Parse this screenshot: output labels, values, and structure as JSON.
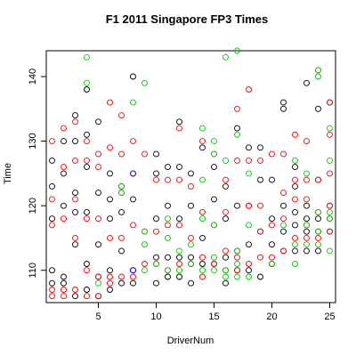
{
  "chart_data": {
    "type": "scatter",
    "title": "F1 2011 Singapore FP3 Times",
    "xlabel": "DriverNum",
    "ylabel": "Time",
    "xlim": [
      0.5,
      25.5
    ],
    "ylim": [
      105,
      144
    ],
    "xticks": [
      "5",
      "10",
      "15",
      "20",
      "25"
    ],
    "yticks": [
      "110",
      "120",
      "130",
      "140"
    ],
    "grid": false,
    "legend": "none",
    "series": [
      {
        "color": "#000000",
        "points": [
          [
            1,
            110
          ],
          [
            1,
            118
          ],
          [
            1,
            123
          ],
          [
            1,
            127
          ],
          [
            1,
            108
          ],
          [
            2,
            109
          ],
          [
            2,
            120
          ],
          [
            2,
            125
          ],
          [
            2,
            130
          ],
          [
            2,
            108
          ],
          [
            3,
            106
          ],
          [
            3,
            114
          ],
          [
            3,
            119
          ],
          [
            3,
            122
          ],
          [
            3,
            130
          ],
          [
            3,
            134
          ],
          [
            4,
            107
          ],
          [
            4,
            111
          ],
          [
            4,
            119
          ],
          [
            4,
            126
          ],
          [
            4,
            131
          ],
          [
            4,
            138
          ],
          [
            5,
            106
          ],
          [
            5,
            109
          ],
          [
            5,
            114
          ],
          [
            5,
            122
          ],
          [
            5,
            133
          ],
          [
            6,
            107
          ],
          [
            6,
            110
          ],
          [
            6,
            118
          ],
          [
            6,
            121
          ],
          [
            6,
            125
          ],
          [
            7,
            108
          ],
          [
            7,
            113
          ],
          [
            7,
            119
          ],
          [
            7,
            123
          ],
          [
            8,
            108
          ],
          [
            8,
            110
          ],
          [
            8,
            121
          ],
          [
            8,
            140
          ],
          [
            10,
            108
          ],
          [
            10,
            112
          ],
          [
            10,
            118
          ],
          [
            10,
            125
          ],
          [
            10,
            128
          ],
          [
            11,
            109
          ],
          [
            11,
            112
          ],
          [
            11,
            120
          ],
          [
            11,
            126
          ],
          [
            12,
            109
          ],
          [
            12,
            112
          ],
          [
            12,
            118
          ],
          [
            12,
            126
          ],
          [
            12,
            133
          ],
          [
            13,
            108
          ],
          [
            13,
            112
          ],
          [
            13,
            120
          ],
          [
            13,
            125
          ],
          [
            14,
            111
          ],
          [
            14,
            115
          ],
          [
            14,
            129
          ],
          [
            15,
            111
          ],
          [
            15,
            121
          ],
          [
            15,
            126
          ],
          [
            16,
            108
          ],
          [
            16,
            112
          ],
          [
            16,
            118
          ],
          [
            16,
            123
          ],
          [
            17,
            110
          ],
          [
            17,
            113
          ],
          [
            17,
            120
          ],
          [
            17,
            132
          ],
          [
            18,
            110
          ],
          [
            18,
            114
          ],
          [
            18,
            120
          ],
          [
            18,
            129
          ],
          [
            19,
            109
          ],
          [
            19,
            116
          ],
          [
            19,
            124
          ],
          [
            19,
            129
          ],
          [
            20,
            111
          ],
          [
            20,
            114
          ],
          [
            20,
            118
          ],
          [
            20,
            124
          ],
          [
            21,
            113
          ],
          [
            21,
            116
          ],
          [
            21,
            120
          ],
          [
            21,
            135
          ],
          [
            21,
            136
          ],
          [
            22,
            113
          ],
          [
            22,
            117
          ],
          [
            22,
            119
          ],
          [
            22,
            123
          ],
          [
            22,
            126
          ],
          [
            23,
            113
          ],
          [
            23,
            116
          ],
          [
            23,
            118
          ],
          [
            23,
            120
          ],
          [
            23,
            139
          ],
          [
            24,
            113
          ],
          [
            24,
            116
          ],
          [
            24,
            118
          ],
          [
            24,
            124
          ],
          [
            24,
            135
          ],
          [
            25,
            116
          ],
          [
            25,
            118
          ],
          [
            25,
            120
          ],
          [
            25,
            136
          ]
        ]
      },
      {
        "color": "#ff0000",
        "points": [
          [
            1,
            106
          ],
          [
            1,
            107
          ],
          [
            1,
            117
          ],
          [
            1,
            121
          ],
          [
            1,
            130
          ],
          [
            2,
            106
          ],
          [
            2,
            107
          ],
          [
            2,
            118
          ],
          [
            2,
            126
          ],
          [
            2,
            132
          ],
          [
            3,
            107
          ],
          [
            3,
            115
          ],
          [
            3,
            121
          ],
          [
            3,
            127
          ],
          [
            3,
            133
          ],
          [
            4,
            106
          ],
          [
            4,
            110
          ],
          [
            4,
            118
          ],
          [
            4,
            127
          ],
          [
            4,
            130
          ],
          [
            5,
            106
          ],
          [
            5,
            109
          ],
          [
            5,
            118
          ],
          [
            5,
            126
          ],
          [
            5,
            128
          ],
          [
            6,
            108
          ],
          [
            6,
            109
          ],
          [
            6,
            115
          ],
          [
            6,
            129
          ],
          [
            6,
            136
          ],
          [
            7,
            109
          ],
          [
            7,
            115
          ],
          [
            7,
            122
          ],
          [
            7,
            128
          ],
          [
            7,
            134
          ],
          [
            8,
            109
          ],
          [
            8,
            117
          ],
          [
            8,
            125
          ],
          [
            8,
            130
          ],
          [
            9,
            111
          ],
          [
            9,
            116
          ],
          [
            9,
            128
          ],
          [
            10,
            111
          ],
          [
            10,
            116
          ],
          [
            10,
            124
          ],
          [
            11,
            110
          ],
          [
            11,
            117
          ],
          [
            11,
            124
          ],
          [
            12,
            111
          ],
          [
            12,
            117
          ],
          [
            12,
            124
          ],
          [
            12,
            132
          ],
          [
            13,
            111
          ],
          [
            13,
            115
          ],
          [
            13,
            123
          ],
          [
            14,
            109
          ],
          [
            14,
            112
          ],
          [
            14,
            119
          ],
          [
            14,
            130
          ],
          [
            15,
            111
          ],
          [
            15,
            117
          ],
          [
            15,
            128
          ],
          [
            16,
            110
          ],
          [
            16,
            113
          ],
          [
            16,
            119
          ],
          [
            16,
            124
          ],
          [
            17,
            110
          ],
          [
            17,
            112
          ],
          [
            17,
            127
          ],
          [
            17,
            135
          ],
          [
            18,
            111
          ],
          [
            18,
            120
          ],
          [
            18,
            127
          ],
          [
            18,
            138
          ],
          [
            19,
            112
          ],
          [
            19,
            116
          ],
          [
            19,
            120
          ],
          [
            19,
            127
          ],
          [
            20,
            112
          ],
          [
            20,
            117
          ],
          [
            20,
            128
          ],
          [
            21,
            113
          ],
          [
            21,
            118
          ],
          [
            21,
            122
          ],
          [
            21,
            128
          ],
          [
            22,
            115
          ],
          [
            22,
            121
          ],
          [
            22,
            124
          ],
          [
            22,
            131
          ],
          [
            23,
            115
          ],
          [
            23,
            117
          ],
          [
            23,
            121
          ],
          [
            23,
            124
          ],
          [
            23,
            130
          ],
          [
            24,
            115
          ],
          [
            24,
            119
          ],
          [
            24,
            124
          ],
          [
            24,
            141
          ],
          [
            25,
            116
          ],
          [
            25,
            120
          ],
          [
            25,
            125
          ],
          [
            25,
            131
          ],
          [
            25,
            136
          ]
        ]
      },
      {
        "color": "#00cc00",
        "points": [
          [
            4,
            139
          ],
          [
            4,
            143
          ],
          [
            5,
            108
          ],
          [
            7,
            122
          ],
          [
            7,
            123
          ],
          [
            8,
            136
          ],
          [
            9,
            110
          ],
          [
            9,
            114
          ],
          [
            9,
            116
          ],
          [
            9,
            139
          ],
          [
            10,
            111
          ],
          [
            11,
            110
          ],
          [
            11,
            115
          ],
          [
            11,
            118
          ],
          [
            12,
            110
          ],
          [
            12,
            113
          ],
          [
            13,
            111
          ],
          [
            13,
            114
          ],
          [
            14,
            110
          ],
          [
            14,
            118
          ],
          [
            14,
            124
          ],
          [
            14,
            132
          ],
          [
            15,
            110
          ],
          [
            15,
            112
          ],
          [
            15,
            117
          ],
          [
            15,
            128
          ],
          [
            15,
            130
          ],
          [
            16,
            109
          ],
          [
            16,
            110
          ],
          [
            16,
            127
          ],
          [
            16,
            143
          ],
          [
            17,
            109
          ],
          [
            17,
            111
          ],
          [
            17,
            113
          ],
          [
            17,
            131
          ],
          [
            17,
            144
          ],
          [
            18,
            109
          ],
          [
            18,
            117
          ],
          [
            18,
            125
          ],
          [
            20,
            111
          ],
          [
            21,
            117
          ],
          [
            22,
            111
          ],
          [
            22,
            114
          ],
          [
            22,
            127
          ],
          [
            23,
            114
          ],
          [
            23,
            117
          ],
          [
            23,
            125
          ],
          [
            24,
            114
          ],
          [
            24,
            116
          ],
          [
            24,
            119
          ],
          [
            24,
            140
          ],
          [
            24,
            141
          ],
          [
            25,
            113
          ],
          [
            25,
            118
          ],
          [
            25,
            119
          ],
          [
            25,
            127
          ],
          [
            25,
            132
          ]
        ]
      },
      {
        "color": "#0000ff",
        "points": [
          [
            8,
            110
          ],
          [
            8,
            125
          ]
        ]
      }
    ]
  }
}
